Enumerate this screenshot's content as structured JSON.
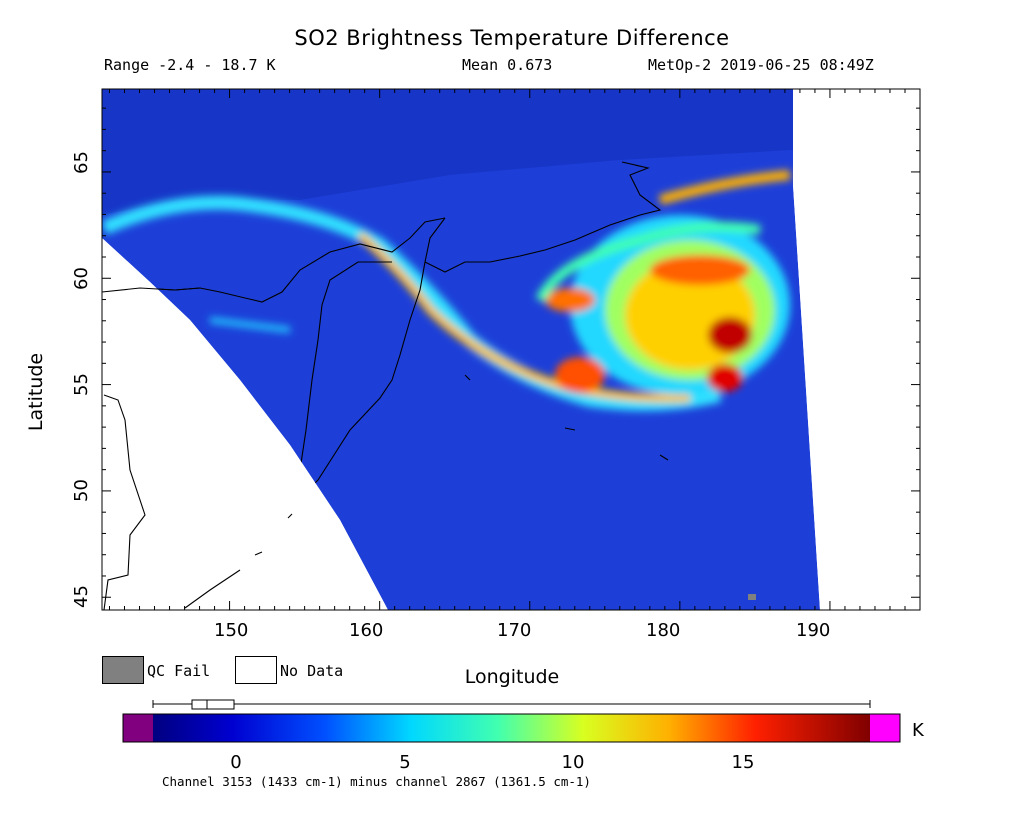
{
  "header": {
    "title": "SO2 Brightness Temperature Difference",
    "range": "Range -2.4 - 18.7 K",
    "mean": "Mean 0.673",
    "platform_time": "MetOp-2 2019-06-25 08:49Z"
  },
  "map": {
    "xlabel": "Longitude",
    "ylabel": "Latitude",
    "lon_range": [
      141.5,
      196
    ],
    "lat_range": [
      44.4,
      68.9
    ],
    "x_ticks": [
      "150",
      "160",
      "170",
      "180",
      "190"
    ],
    "y_ticks": [
      "45",
      "50",
      "55",
      "60",
      "65"
    ],
    "background_color": "#1d3fd8",
    "nodata_color": "#ffffff",
    "coastline_color": "#000000"
  },
  "legend": {
    "qc_fail_label": "QC Fail",
    "qc_fail_color": "#808080",
    "no_data_label": "No Data",
    "no_data_color": "#ffffff"
  },
  "colorbar": {
    "unit": "K",
    "ticks": [
      "0",
      "5",
      "10",
      "15"
    ],
    "range": [
      -2.4,
      18.7
    ],
    "underflow_color": "#800080",
    "overflow_color": "#ff00ff",
    "footnote": "Channel 3153 (1433 cm-1) minus channel 2867 (1361.5 cm-1)"
  }
}
